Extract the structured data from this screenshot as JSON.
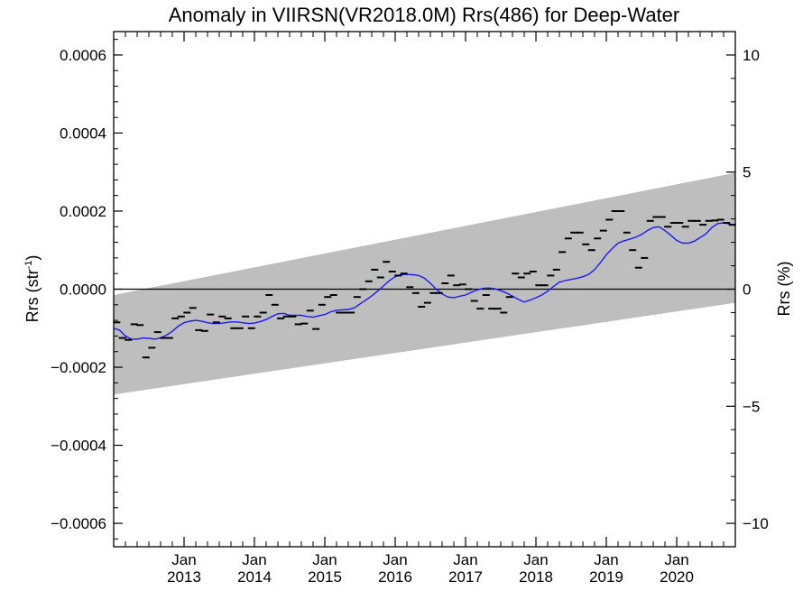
{
  "chart_data": {
    "type": "line",
    "title": "Anomaly in VIIRSN(VR2018.0M) Rrs(486) for Deep-Water",
    "ylabel_left_text": "Rrs (str",
    "ylabel_left_sup": "-1",
    "ylabel_left_close": ")",
    "ylabel_right": "Rrs (%)",
    "xlim": [
      2012.0,
      2020.833
    ],
    "ylim_left": [
      -0.00066,
      0.00066
    ],
    "ylim_right": [
      -11,
      11
    ],
    "left_ticks": [
      {
        "value": 0.0006,
        "label": "0.0006"
      },
      {
        "value": 0.0004,
        "label": "0.0004"
      },
      {
        "value": 0.0002,
        "label": "0.0002"
      },
      {
        "value": 0.0,
        "label": "0.0000"
      },
      {
        "value": -0.0002,
        "label": "−0.0002"
      },
      {
        "value": -0.0004,
        "label": "−0.0004"
      },
      {
        "value": -0.0006,
        "label": "−0.0006"
      }
    ],
    "right_ticks": [
      {
        "value": 10,
        "label": "10"
      },
      {
        "value": 5,
        "label": "5"
      },
      {
        "value": 0,
        "label": "0"
      },
      {
        "value": -5,
        "label": "−5"
      },
      {
        "value": -10,
        "label": "−10"
      }
    ],
    "x_ticks": [
      {
        "value": 2013.0,
        "month": "Jan",
        "year": "2013"
      },
      {
        "value": 2014.0,
        "month": "Jan",
        "year": "2014"
      },
      {
        "value": 2015.0,
        "month": "Jan",
        "year": "2015"
      },
      {
        "value": 2016.0,
        "month": "Jan",
        "year": "2016"
      },
      {
        "value": 2017.0,
        "month": "Jan",
        "year": "2017"
      },
      {
        "value": 2018.0,
        "month": "Jan",
        "year": "2018"
      },
      {
        "value": 2019.0,
        "month": "Jan",
        "year": "2019"
      },
      {
        "value": 2020.0,
        "month": "Jan",
        "year": "2020"
      }
    ],
    "grid": false,
    "zero_line": true,
    "band": {
      "lower": [
        [
          2012.0,
          -0.00027
        ],
        [
          2020.833,
          -3.5e-05
        ]
      ],
      "upper": [
        [
          2012.0,
          -1.5e-05
        ],
        [
          2020.833,
          0.000298
        ]
      ],
      "color": "#bebebe"
    },
    "monthly_anomaly": {
      "color": "#000000",
      "x": [
        2012.0,
        2012.083,
        2012.167,
        2012.25,
        2012.333,
        2012.417,
        2012.5,
        2012.583,
        2012.667,
        2012.75,
        2012.833,
        2012.917,
        2013.0,
        2013.083,
        2013.167,
        2013.25,
        2013.333,
        2013.417,
        2013.5,
        2013.583,
        2013.667,
        2013.75,
        2013.833,
        2013.917,
        2014.0,
        2014.083,
        2014.167,
        2014.25,
        2014.333,
        2014.417,
        2014.5,
        2014.583,
        2014.667,
        2014.75,
        2014.833,
        2014.917,
        2015.0,
        2015.083,
        2015.167,
        2015.25,
        2015.333,
        2015.417,
        2015.5,
        2015.583,
        2015.667,
        2015.75,
        2015.833,
        2015.917,
        2016.0,
        2016.083,
        2016.167,
        2016.25,
        2016.333,
        2016.417,
        2016.5,
        2016.583,
        2016.667,
        2016.75,
        2016.833,
        2016.917,
        2017.0,
        2017.083,
        2017.167,
        2017.25,
        2017.333,
        2017.417,
        2017.5,
        2017.583,
        2017.667,
        2017.75,
        2017.833,
        2017.917,
        2018.0,
        2018.083,
        2018.167,
        2018.25,
        2018.333,
        2018.417,
        2018.5,
        2018.583,
        2018.667,
        2018.75,
        2018.833,
        2018.917,
        2019.0,
        2019.083,
        2019.167,
        2019.25,
        2019.333,
        2019.417,
        2019.5,
        2019.583,
        2019.667,
        2019.75,
        2019.833,
        2019.917,
        2020.0,
        2020.083,
        2020.167,
        2020.25,
        2020.333,
        2020.417,
        2020.5,
        2020.583,
        2020.667,
        2020.75
      ],
      "y": [
        -8.5e-05,
        -0.000125,
        -0.00013,
        -9e-05,
        -9.2e-05,
        -0.000175,
        -0.00015,
        -0.00011,
        -0.000125,
        -0.000125,
        -7.5e-05,
        -7e-05,
        -6e-05,
        -4.8e-05,
        -0.000105,
        -0.000107,
        -6.5e-05,
        -8.5e-05,
        -7e-05,
        -7.5e-05,
        -0.0001,
        -0.0001,
        -7e-05,
        -0.0001,
        -7e-05,
        -6e-05,
        -1.5e-05,
        -4e-05,
        -7.5e-05,
        -7e-05,
        -7e-05,
        -9e-05,
        -8.8e-05,
        -5.5e-05,
        -0.000102,
        -4e-05,
        -2e-05,
        -1.5e-05,
        -6e-05,
        -6e-05,
        -6e-05,
        -2e-05,
        0.0,
        2e-05,
        5e-05,
        3e-05,
        7e-05,
        4.5e-05,
        3.5e-05,
        4e-05,
        5e-06,
        -1e-05,
        -4.5e-05,
        -3.5e-05,
        -1e-05,
        -1e-05,
        1.5e-05,
        3.5e-05,
        1e-05,
        1.2e-05,
        0.0,
        -3e-05,
        -5e-05,
        -1.5e-05,
        -5e-05,
        -5e-05,
        -6e-05,
        -2e-05,
        4e-05,
        3e-05,
        4e-05,
        4.5e-05,
        1e-05,
        1e-05,
        3.5e-05,
        5e-05,
        9.5e-05,
        0.00013,
        0.000145,
        0.000145,
        0.000115,
        0.0001,
        0.00013,
        0.00015,
        0.000178,
        0.0002,
        0.0002,
        0.000145,
        0.0001,
        5.5e-05,
        8e-05,
        0.000175,
        0.000185,
        0.000185,
        0.00016,
        0.00017,
        0.00017,
        0.00016,
        0.000175,
        0.000175,
        0.000165,
        0.000175,
        0.000176,
        0.000178,
        0.00017,
        0.000165
      ]
    },
    "smoothed": {
      "color": "#1a1aff",
      "x": [
        2012.0,
        2012.083,
        2012.167,
        2012.25,
        2012.333,
        2012.417,
        2012.5,
        2012.583,
        2012.667,
        2012.75,
        2012.833,
        2012.917,
        2013.0,
        2013.083,
        2013.167,
        2013.25,
        2013.333,
        2013.417,
        2013.5,
        2013.583,
        2013.667,
        2013.75,
        2013.833,
        2013.917,
        2014.0,
        2014.083,
        2014.167,
        2014.25,
        2014.333,
        2014.417,
        2014.5,
        2014.583,
        2014.667,
        2014.75,
        2014.833,
        2014.917,
        2015.0,
        2015.083,
        2015.167,
        2015.25,
        2015.333,
        2015.417,
        2015.5,
        2015.583,
        2015.667,
        2015.75,
        2015.833,
        2015.917,
        2016.0,
        2016.083,
        2016.167,
        2016.25,
        2016.333,
        2016.417,
        2016.5,
        2016.583,
        2016.667,
        2016.75,
        2016.833,
        2016.917,
        2017.0,
        2017.083,
        2017.167,
        2017.25,
        2017.333,
        2017.417,
        2017.5,
        2017.583,
        2017.667,
        2017.75,
        2017.833,
        2017.917,
        2018.0,
        2018.083,
        2018.167,
        2018.25,
        2018.333,
        2018.417,
        2018.5,
        2018.583,
        2018.667,
        2018.75,
        2018.833,
        2018.917,
        2019.0,
        2019.083,
        2019.167,
        2019.25,
        2019.333,
        2019.417,
        2019.5,
        2019.583,
        2019.667,
        2019.75,
        2019.833,
        2019.917,
        2020.0,
        2020.083,
        2020.167,
        2020.25,
        2020.333,
        2020.417,
        2020.5,
        2020.583,
        2020.667,
        2020.75,
        2020.833
      ],
      "y": [
        -0.0001,
        -0.000105,
        -0.00012,
        -0.000128,
        -0.000128,
        -0.000125,
        -0.000126,
        -0.000128,
        -0.000125,
        -0.000118,
        -0.000108,
        -9.5e-05,
        -8.6e-05,
        -8.2e-05,
        -8e-05,
        -8.2e-05,
        -8.6e-05,
        -8.8e-05,
        -8.8e-05,
        -8.6e-05,
        -8.4e-05,
        -8.4e-05,
        -8.6e-05,
        -8.8e-05,
        -8.7e-05,
        -8.3e-05,
        -7.8e-05,
        -7e-05,
        -6.3e-05,
        -6.2e-05,
        -6.7e-05,
        -6.7e-05,
        -6.7e-05,
        -7e-05,
        -7.2e-05,
        -6.8e-05,
        -6.5e-05,
        -5.8e-05,
        -5.4e-05,
        -5.3e-05,
        -5.2e-05,
        -4.8e-05,
        -3.8e-05,
        -2.8e-05,
        -1.7e-05,
        -5e-06,
        8e-06,
        2.2e-05,
        3.2e-05,
        3.7e-05,
        3.8e-05,
        3.7e-05,
        3.5e-05,
        2.8e-05,
        1.5e-05,
        0.0,
        -1.2e-05,
        -2e-05,
        -2.2e-05,
        -1.8e-05,
        -1.5e-05,
        -8e-06,
        -2e-06,
        2e-06,
        3e-06,
        1e-06,
        -4e-06,
        -1e-05,
        -1.8e-05,
        -2.6e-05,
        -3.3e-05,
        -2.8e-05,
        -2.2e-05,
        -1.5e-05,
        -5e-06,
        7e-06,
        1.8e-05,
        2.2e-05,
        2.5e-05,
        2.8e-05,
        3.2e-05,
        3.8e-05,
        5e-05,
        6.8e-05,
        8.8e-05,
        0.000104,
        0.000118,
        0.000124,
        0.000128,
        0.000133,
        0.00014,
        0.00015,
        0.000158,
        0.00016,
        0.00015,
        0.000138,
        0.000125,
        0.000118,
        0.000118,
        0.000123,
        0.000132,
        0.000142,
        0.000158,
        0.000168,
        0.00017,
        0.000167,
        0.000163
      ]
    }
  }
}
